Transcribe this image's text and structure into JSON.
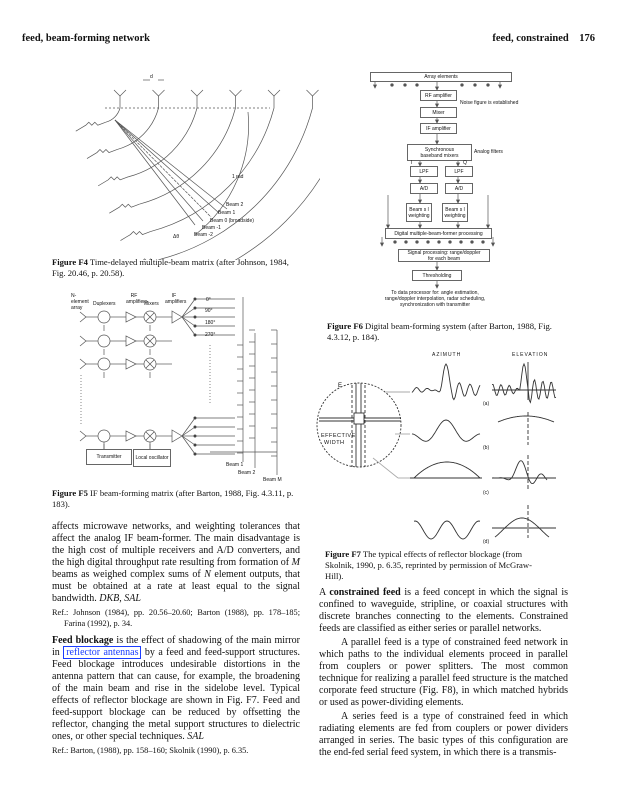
{
  "header": {
    "left": "feed, beam-forming network",
    "right": "feed, constrained",
    "page_number": "176"
  },
  "figure_f4": {
    "labels": {
      "d": "d",
      "rad": "1 rad",
      "beam2": "Beam 2",
      "beam1": "Beam 1",
      "beam0": "Beam 0 (broadside)",
      "beamm1": "Beam -1",
      "beamm2": "Beam -2",
      "dtheta": "Δθ"
    },
    "caption_label": "Figure F4",
    "caption_text": " Time-delayed multiple-beam matrix (after Johnson, 1984, Fig. 20.46, p. 20.58)."
  },
  "figure_f5": {
    "labels": {
      "array": "N-element array",
      "duplexers": "Duplexers",
      "rf": "RF amplifiers",
      "mixers": "Mixers",
      "if": "IF amplifiers",
      "p0": "0°",
      "p90": "90°",
      "p180": "180°",
      "p270": "270°",
      "transmitter": "Transmitter",
      "lo": "Local oscillator",
      "beam1": "Beam 1",
      "beam2": "Beam 2",
      "beamM": "Beam M"
    },
    "caption_label": "Figure F5",
    "caption_text": " IF beam-forming matrix (after Barton, 1988, Fig. 4.3.11, p. 183)."
  },
  "figure_f6": {
    "boxes": {
      "array": "Array elements",
      "rf": "RF amplifier",
      "mixer": "Mixer",
      "if": "IF amplifier",
      "sync": "Synchronous baseband mixers",
      "lpf1": "LPF",
      "lpf2": "LPF",
      "ad1": "A/D",
      "ad2": "A/D",
      "bw1": "Beam s l weighting",
      "bw2": "Beam s l weighting",
      "dmb": "Digital multiple-beam-former processing",
      "sp": "Signal processing: range/doppler for each beam",
      "th": "Thresholding"
    },
    "notes": {
      "noise": "Noise figure is established",
      "analog": "Analog filters",
      "i": "I",
      "q": "Q",
      "out1": "To data processor for: angle estimation,",
      "out2": "range/doppler interpolation, radar scheduling,",
      "out3": "synchronization with transmitter"
    },
    "caption_label": "Figure F6",
    "caption_text": " Digital beam-forming system (after Barton, 1988, Fig. 4.3.12, p. 184)."
  },
  "figure_f7": {
    "labels": {
      "azimuth": "AZIMUTH",
      "elevation": "ELEVATION",
      "e": "E",
      "effective": "EFFECTIVE",
      "width": "WIDTH",
      "a": "(a)",
      "b": "(b)",
      "c": "(c)",
      "d": "(d)"
    },
    "caption_label": "Figure F7",
    "caption_text": " The typical effects of reflector blockage (from Skolnik, 1990, p. 6.35, reprinted by permission of McGraw-Hill)."
  },
  "left_column": {
    "continuation": "affects microwave networks, and weighting tolerances that affect the analog IF beam-former. The main disadvantage is the high cost of multiple receivers and A/D converters, and the high digital throughput rate resulting from formation of ",
    "m": "M",
    "continuation2": " beams as weighed complex sums of ",
    "n": "N",
    "continuation3": " element outputs, that must be obtained at a rate at least equal to the signal bandwidth. ",
    "authors1": "DKB, SAL",
    "ref1": "Ref.: Johnson (1984), pp. 20.56–20.60; Barton (1988), pp. 178–185; Farina (1992), p. 34.",
    "term": "Feed blockage",
    "blockage_pre": " is the effect of shadowing of the main mirror in ",
    "link": "reflector antennas",
    "blockage_post": " by a feed and feed-support structures. Feed blockage introduces undesirable distortions in the antenna pattern that can cause, for example, the broadening of the main beam and rise in the sidelobe level. Typical effects of reflector blockage are shown in Fig. F7. Feed and feed-support blockage can be reduced by offsetting the reflector, changing the metal support structures to dielectric ones, or other special techniques. ",
    "authors2": "SAL",
    "ref2": "Ref.: Barton, (1988), pp. 158–160; Skolnik (1990), p. 6.35."
  },
  "right_column": {
    "prefix": "A ",
    "term": "constrained feed",
    "p1": " is a feed concept in which the signal is confined to waveguide, stripline, or coaxial structures with discrete branches connecting to the elements. Constrained feeds are classified as either series or parallel networks.",
    "p2": "A parallel feed is a type of constrained feed network in which paths to the individual elements proceed in parallel from couplers or power splitters. The most common technique for realizing a parallel feed structure is the matched corporate feed structure (Fig. F8), in which matched hybrids or used as power-dividing elements.",
    "p3": "A series feed is a type of constrained feed in which radiating elements are fed from couplers or power dividers arranged in series. The basic types of this configuration are the end-fed serial feed system, in which there is a transmis-"
  }
}
